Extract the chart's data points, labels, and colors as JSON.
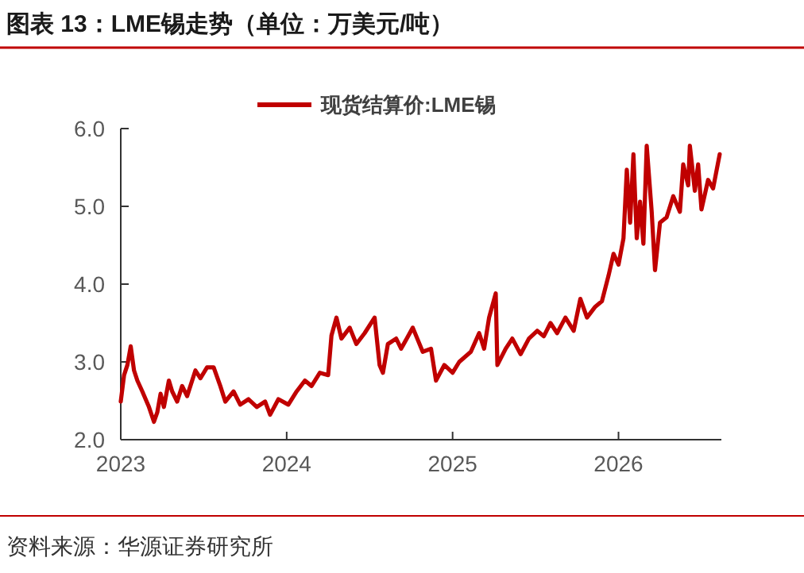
{
  "chart_data": {
    "type": "line",
    "title": "图表 13：LME锡走势（单位：万美元/吨）",
    "annotations": [
      "资料来源：华源证券研究所"
    ],
    "x": [
      2023.0,
      2023.02,
      2023.04,
      2023.06,
      2023.08,
      2023.1,
      2023.13,
      2023.17,
      2023.2,
      2023.22,
      2023.24,
      2023.26,
      2023.29,
      2023.31,
      2023.34,
      2023.37,
      2023.4,
      2023.45,
      2023.48,
      2023.52,
      2023.56,
      2023.6,
      2023.63,
      2023.68,
      2023.72,
      2023.77,
      2023.82,
      2023.87,
      2023.9,
      2023.95,
      2024.01,
      2024.06,
      2024.11,
      2024.15,
      2024.2,
      2024.25,
      2024.27,
      2024.3,
      2024.33,
      2024.38,
      2024.42,
      2024.47,
      2024.53,
      2024.56,
      2024.58,
      2024.61,
      2024.66,
      2024.69,
      2024.76,
      2024.82,
      2024.87,
      2024.9,
      2024.95,
      2025.0,
      2025.04,
      2025.11,
      2025.16,
      2025.19,
      2025.22,
      2025.26,
      2025.27,
      2025.32,
      2025.36,
      2025.41,
      2025.46,
      2025.51,
      2025.55,
      2025.59,
      2025.63,
      2025.68,
      2025.73,
      2025.77,
      2025.81,
      2025.86,
      2025.9,
      2025.94,
      2025.97,
      2026.0,
      2026.03,
      2026.05,
      2026.07,
      2026.09,
      2026.11,
      2026.13,
      2026.15,
      2026.17,
      2026.2,
      2026.22,
      2026.25,
      2026.29,
      2026.33,
      2026.37,
      2026.39,
      2026.42,
      2026.43,
      2026.46,
      2026.48,
      2026.5,
      2026.54,
      2026.57,
      2026.61
    ],
    "series": [
      {
        "name": "现货结算价:LME锡",
        "color": "#c00000",
        "values": [
          2.49,
          2.83,
          2.96,
          3.2,
          2.89,
          2.76,
          2.62,
          2.42,
          2.23,
          2.35,
          2.59,
          2.42,
          2.76,
          2.62,
          2.49,
          2.69,
          2.56,
          2.89,
          2.79,
          2.93,
          2.93,
          2.69,
          2.49,
          2.62,
          2.45,
          2.52,
          2.42,
          2.49,
          2.32,
          2.52,
          2.45,
          2.62,
          2.76,
          2.69,
          2.86,
          2.83,
          3.34,
          3.57,
          3.3,
          3.44,
          3.23,
          3.37,
          3.57,
          2.96,
          2.86,
          3.23,
          3.3,
          3.17,
          3.44,
          3.13,
          3.17,
          2.76,
          2.96,
          2.86,
          3.0,
          3.13,
          3.37,
          3.17,
          3.57,
          3.88,
          2.96,
          3.17,
          3.3,
          3.1,
          3.3,
          3.4,
          3.33,
          3.5,
          3.37,
          3.57,
          3.4,
          3.81,
          3.57,
          3.71,
          3.78,
          4.11,
          4.39,
          4.25,
          4.59,
          5.47,
          4.79,
          5.67,
          4.59,
          5.06,
          4.52,
          5.78,
          4.93,
          4.18,
          4.79,
          4.86,
          5.13,
          4.93,
          5.54,
          5.27,
          5.78,
          5.2,
          5.54,
          4.96,
          5.34,
          5.23,
          5.67
        ]
      }
    ],
    "xlim": [
      2023,
      2026.62
    ],
    "xticks": [
      2023,
      2024,
      2025,
      2026
    ],
    "ylim": [
      2.0,
      6.0
    ],
    "yticks": [
      {
        "value": 2,
        "label": "2.0"
      },
      {
        "value": 3,
        "label": "3.0"
      },
      {
        "value": 4,
        "label": "4.0"
      },
      {
        "value": 5,
        "label": "5.0"
      },
      {
        "value": 6,
        "label": "6.0"
      }
    ],
    "legend": "top",
    "grid": false,
    "marker": "none",
    "line_style": "solid"
  }
}
